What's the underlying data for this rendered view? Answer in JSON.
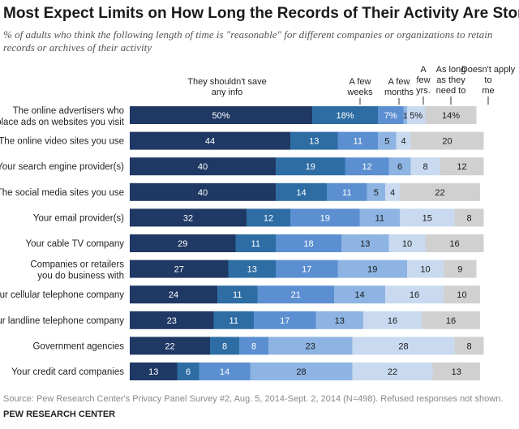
{
  "title": "Most Expect Limits on How Long the Records of Their Activity Are Stored",
  "subtitle": "% of adults who think the following length of time is \"reasonable\" for different companies or organizations to retain records or archives of their activity",
  "source": "Source: Pew Research Center's Privacy Panel Survey #2, Aug. 5, 2014-Sept. 2, 2014 (N=498). Refused responses not shown.",
  "credit": "PEW RESEARCH CENTER",
  "colors": [
    "#1f3864",
    "#2e6da4",
    "#5b8fd1",
    "#8db4e2",
    "#c9daf0",
    "#d0d0d0"
  ],
  "chart_data": {
    "type": "bar",
    "orientation": "horizontal",
    "stacked": true,
    "categories": [
      "The online advertisers who place ads on websites you visit",
      "The online video sites you use",
      "Your search engine provider(s)",
      "The social media sites you use",
      "Your email provider(s)",
      "Your cable TV company",
      "Companies or retailers you do business with",
      "Your cellular telephone company",
      "Your landline telephone company",
      "Government agencies",
      "Your credit card companies"
    ],
    "series": [
      {
        "name": "They shouldn't save any info",
        "values": [
          50,
          44,
          40,
          40,
          32,
          29,
          27,
          24,
          23,
          22,
          13
        ]
      },
      {
        "name": "A few weeks",
        "values": [
          18,
          13,
          19,
          14,
          12,
          11,
          13,
          11,
          11,
          8,
          6
        ]
      },
      {
        "name": "A few months",
        "values": [
          7,
          11,
          12,
          11,
          19,
          18,
          17,
          21,
          17,
          8,
          14
        ]
      },
      {
        "name": "A few yrs.",
        "values": [
          1,
          5,
          6,
          5,
          11,
          13,
          19,
          14,
          13,
          23,
          28
        ]
      },
      {
        "name": "As long as they need to",
        "values": [
          5,
          4,
          8,
          4,
          15,
          10,
          10,
          16,
          16,
          28,
          22
        ]
      },
      {
        "name": "Doesn't apply to me",
        "values": [
          14,
          20,
          12,
          22,
          8,
          16,
          9,
          10,
          16,
          8,
          13
        ]
      }
    ],
    "first_row_suffix": "%"
  }
}
